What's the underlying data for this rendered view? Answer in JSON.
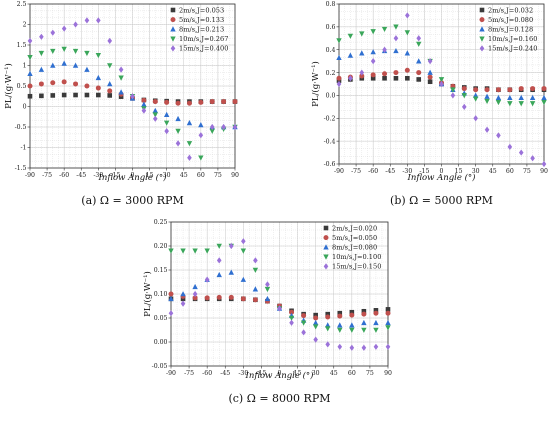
{
  "chart_data": [
    {
      "type": "scatter",
      "caption": "(a) Ω = 3000 RPM",
      "xlabel": "Inflow Angle (°)",
      "ylabel": "PL/(g·W⁻¹)",
      "xlim": [
        -90,
        90
      ],
      "ylim": [
        -1.5,
        2.5
      ],
      "x_ticks": [
        -90,
        -75,
        -60,
        -45,
        -30,
        -15,
        0,
        15,
        30,
        45,
        60,
        75,
        90
      ],
      "y_ticks": [
        -1.5,
        -1.0,
        -0.5,
        0.0,
        0.5,
        1.0,
        1.5,
        2.0,
        2.5
      ],
      "y_tick_labels": [
        "-1.5",
        "-1",
        "-0.5",
        "0",
        "0.5",
        "1",
        "1.5",
        "2",
        "2.5"
      ],
      "grid": true,
      "legend_position": "top-right",
      "x": [
        -90,
        -80,
        -70,
        -60,
        -50,
        -40,
        -30,
        -20,
        -10,
        0,
        10,
        20,
        30,
        40,
        50,
        60,
        70,
        80,
        90
      ],
      "series": [
        {
          "name": "2m/s,J=0.053",
          "marker": "square",
          "color": "#3a3a3a",
          "values": [
            0.25,
            0.26,
            0.27,
            0.28,
            0.28,
            0.28,
            0.28,
            0.27,
            0.24,
            0.2,
            0.16,
            0.14,
            0.13,
            0.12,
            0.12,
            0.12,
            0.12,
            0.12,
            0.12
          ]
        },
        {
          "name": "5m/s,J=0.133",
          "marker": "circle",
          "color": "#c0504d",
          "values": [
            0.5,
            0.55,
            0.58,
            0.6,
            0.55,
            0.5,
            0.45,
            0.38,
            0.3,
            0.2,
            0.15,
            0.12,
            0.1,
            0.08,
            0.08,
            0.1,
            0.12,
            0.12,
            0.12
          ]
        },
        {
          "name": "8m/s,J=0.213",
          "marker": "triangle-up",
          "color": "#2f6fd0",
          "values": [
            0.8,
            0.9,
            1.0,
            1.05,
            1.0,
            0.9,
            0.7,
            0.55,
            0.35,
            0.2,
            0.05,
            -0.1,
            -0.2,
            -0.3,
            -0.4,
            -0.45,
            -0.5,
            -0.5,
            -0.5
          ]
        },
        {
          "name": "10m/s,J=0.267",
          "marker": "triangle-down",
          "color": "#3aa65a",
          "values": [
            1.2,
            1.3,
            1.35,
            1.4,
            1.35,
            1.3,
            1.25,
            1.0,
            0.7,
            0.25,
            -0.05,
            -0.2,
            -0.4,
            -0.6,
            -0.9,
            -1.25,
            -0.6,
            -0.55,
            -0.5
          ]
        },
        {
          "name": "15m/s,J=0.400",
          "marker": "diamond",
          "color": "#9b72d9",
          "values": [
            1.6,
            1.7,
            1.8,
            1.9,
            2.0,
            2.1,
            2.1,
            1.6,
            0.9,
            0.25,
            -0.1,
            -0.3,
            -0.6,
            -0.9,
            -1.25,
            -0.7,
            -0.5,
            -0.5,
            -0.5
          ]
        }
      ]
    },
    {
      "type": "scatter",
      "caption": "(b) Ω = 5000 RPM",
      "xlabel": "Inflow Angle (°)",
      "ylabel": "PL/(g·W⁻¹)",
      "xlim": [
        -90,
        90
      ],
      "ylim": [
        -0.6,
        0.8
      ],
      "x_ticks": [
        -90,
        -75,
        -60,
        -45,
        -30,
        -15,
        0,
        15,
        30,
        45,
        60,
        75,
        90
      ],
      "y_ticks": [
        -0.6,
        -0.4,
        -0.2,
        0.0,
        0.2,
        0.4,
        0.6,
        0.8
      ],
      "y_tick_labels": [
        "-0.6",
        "-0.4",
        "-0.2",
        "0.0",
        "0.2",
        "0.4",
        "0.6",
        "0.8"
      ],
      "grid": true,
      "legend_position": "top-right",
      "x": [
        -90,
        -80,
        -70,
        -60,
        -50,
        -40,
        -30,
        -20,
        -10,
        0,
        10,
        20,
        30,
        40,
        50,
        60,
        70,
        80,
        90
      ],
      "series": [
        {
          "name": "2m/s,J=0.032",
          "marker": "square",
          "color": "#3a3a3a",
          "values": [
            0.13,
            0.14,
            0.15,
            0.15,
            0.15,
            0.15,
            0.15,
            0.14,
            0.12,
            0.1,
            0.08,
            0.07,
            0.06,
            0.06,
            0.05,
            0.05,
            0.05,
            0.05,
            0.05
          ]
        },
        {
          "name": "5m/s,J=0.080",
          "marker": "circle",
          "color": "#c0504d",
          "values": [
            0.15,
            0.16,
            0.17,
            0.18,
            0.19,
            0.2,
            0.22,
            0.2,
            0.16,
            0.11,
            0.08,
            0.06,
            0.05,
            0.05,
            0.05,
            0.05,
            0.06,
            0.06,
            0.06
          ]
        },
        {
          "name": "8m/s,J=0.128",
          "marker": "triangle-up",
          "color": "#2f6fd0",
          "values": [
            0.33,
            0.35,
            0.37,
            0.38,
            0.39,
            0.39,
            0.37,
            0.3,
            0.2,
            0.1,
            0.05,
            0.02,
            0.0,
            -0.01,
            -0.02,
            -0.02,
            -0.02,
            -0.02,
            -0.02
          ]
        },
        {
          "name": "10m/s,J=0.160",
          "marker": "triangle-down",
          "color": "#3aa65a",
          "values": [
            0.48,
            0.52,
            0.54,
            0.56,
            0.58,
            0.6,
            0.55,
            0.45,
            0.3,
            0.14,
            0.05,
            0.0,
            -0.03,
            -0.05,
            -0.06,
            -0.07,
            -0.07,
            -0.07,
            -0.06
          ]
        },
        {
          "name": "15m/s,J=0.240",
          "marker": "diamond",
          "color": "#9b72d9",
          "values": [
            0.1,
            0.15,
            0.2,
            0.3,
            0.4,
            0.5,
            0.7,
            0.5,
            0.3,
            0.1,
            0.0,
            -0.1,
            -0.2,
            -0.3,
            -0.35,
            -0.45,
            -0.5,
            -0.55,
            -0.6
          ]
        }
      ]
    },
    {
      "type": "scatter",
      "caption": "(c) Ω = 8000 RPM",
      "xlabel": "Inflow Angle (°)",
      "ylabel": "PL/(g·W⁻¹)",
      "xlim": [
        -90,
        90
      ],
      "ylim": [
        -0.05,
        0.25
      ],
      "x_ticks": [
        -90,
        -75,
        -60,
        -45,
        -30,
        -15,
        0,
        15,
        30,
        45,
        60,
        75,
        90
      ],
      "y_ticks": [
        -0.05,
        0.0,
        0.05,
        0.1,
        0.15,
        0.2,
        0.25
      ],
      "y_tick_labels": [
        "-0.05",
        "0.00",
        "0.05",
        "0.10",
        "0.15",
        "0.20",
        "0.25"
      ],
      "grid": true,
      "legend_position": "top-right",
      "x": [
        -90,
        -80,
        -70,
        -60,
        -50,
        -40,
        -30,
        -20,
        -10,
        0,
        10,
        20,
        30,
        40,
        50,
        60,
        70,
        80,
        90
      ],
      "series": [
        {
          "name": "2m/s,J=0.020",
          "marker": "square",
          "color": "#3a3a3a",
          "values": [
            0.09,
            0.09,
            0.09,
            0.09,
            0.09,
            0.09,
            0.09,
            0.088,
            0.085,
            0.075,
            0.065,
            0.058,
            0.056,
            0.058,
            0.06,
            0.062,
            0.064,
            0.066,
            0.068
          ]
        },
        {
          "name": "5m/s,J=0.050",
          "marker": "circle",
          "color": "#c0504d",
          "values": [
            0.1,
            0.095,
            0.092,
            0.092,
            0.093,
            0.093,
            0.09,
            0.088,
            0.085,
            0.075,
            0.062,
            0.055,
            0.05,
            0.052,
            0.054,
            0.056,
            0.058,
            0.06,
            0.06
          ]
        },
        {
          "name": "8m/s,J=0.080",
          "marker": "triangle-up",
          "color": "#2f6fd0",
          "values": [
            0.09,
            0.1,
            0.115,
            0.13,
            0.14,
            0.145,
            0.13,
            0.11,
            0.09,
            0.07,
            0.055,
            0.045,
            0.04,
            0.035,
            0.035,
            0.035,
            0.04,
            0.04,
            0.04
          ]
        },
        {
          "name": "10m/s,J=0.100",
          "marker": "triangle-down",
          "color": "#3aa65a",
          "values": [
            0.19,
            0.19,
            0.19,
            0.19,
            0.2,
            0.2,
            0.19,
            0.15,
            0.11,
            0.07,
            0.05,
            0.04,
            0.032,
            0.028,
            0.025,
            0.025,
            0.025,
            0.025,
            0.03
          ]
        },
        {
          "name": "15m/s,J=0.150",
          "marker": "diamond",
          "color": "#9b72d9",
          "values": [
            0.06,
            0.08,
            0.1,
            0.13,
            0.17,
            0.2,
            0.21,
            0.17,
            0.12,
            0.07,
            0.04,
            0.02,
            0.005,
            -0.005,
            -0.01,
            -0.012,
            -0.012,
            -0.01,
            -0.01
          ]
        }
      ]
    }
  ]
}
